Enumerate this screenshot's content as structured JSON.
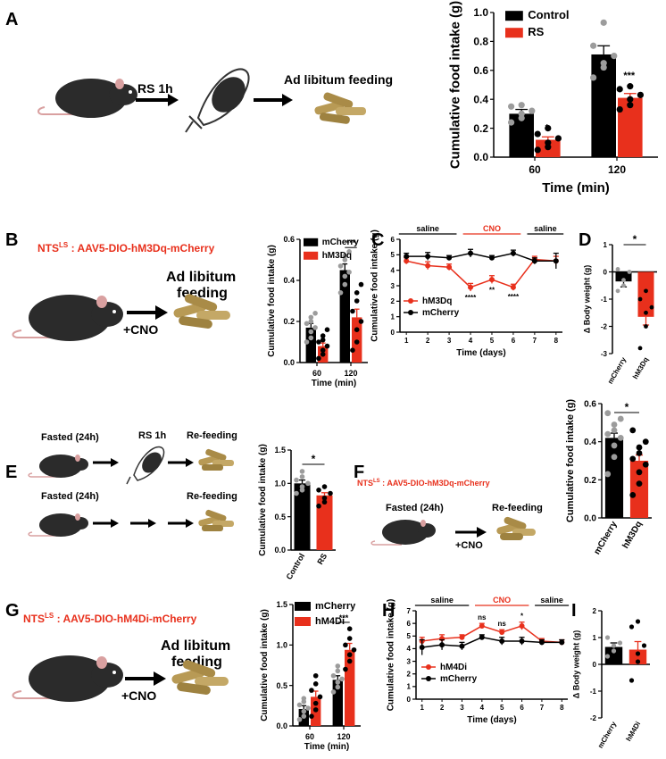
{
  "colors": {
    "control": "#000000",
    "treatment": "#e8301c",
    "dots_light": "#9c9c9c",
    "mouse": "#2b2b2b",
    "pellet": "#b89a55"
  },
  "panels": {
    "A": {
      "letter": "A",
      "rs_step": "RS 1h",
      "feed_label": "Ad libitum feeding"
    },
    "B": {
      "letter": "B",
      "construct_prefix": "NTS",
      "construct_sup": "LS",
      "construct_rest": " : AAV5-DIO-hM3Dq-mCherry",
      "feed_line1": "Ad libitum",
      "feed_line2": "feeding",
      "cno": "+CNO"
    },
    "C": {
      "letter": "C"
    },
    "D": {
      "letter": "D"
    },
    "E": {
      "letter": "E",
      "fasted1": "Fasted (24h)",
      "rs": "RS 1h",
      "refeed1": "Re-feeding",
      "fasted2": "Fasted (24h)",
      "refeed2": "Re-feeding"
    },
    "F": {
      "letter": "F",
      "construct_prefix": "NTS",
      "construct_sup": "LS",
      "construct_rest": " : AAV5-DIO-hM3Dq-mCherry",
      "fasted": "Fasted (24h)",
      "refeed": "Re-feeding",
      "cno": "+CNO"
    },
    "G": {
      "letter": "G",
      "construct_prefix": "NTS",
      "construct_sup": "LS",
      "construct_rest": " : AAV5-DIO-hM4Di-mCherry",
      "feed_line1": "Ad libitum",
      "feed_line2": "feeding",
      "cno": "+CNO"
    },
    "H": {
      "letter": "H"
    },
    "I": {
      "letter": "I"
    }
  },
  "chart_data": [
    {
      "id": "A",
      "type": "bar",
      "x": [
        "60",
        "120"
      ],
      "xlabel": "Time (min)",
      "ylabel": "Cumulative food intake (g)",
      "ylim": [
        0,
        1.0
      ],
      "yticks": [
        "0.0",
        "0.2",
        "0.4",
        "0.6",
        "0.8",
        "1.0"
      ],
      "legend": "top-left",
      "series": [
        {
          "name": "Control",
          "color": "#000000",
          "values": [
            0.3,
            0.71
          ],
          "sem": [
            0.03,
            0.06
          ],
          "points": [
            [
              0.24,
              0.27,
              0.3,
              0.32,
              0.35,
              0.36
            ],
            [
              0.55,
              0.62,
              0.65,
              0.7,
              0.77,
              0.93
            ]
          ]
        },
        {
          "name": "RS",
          "color": "#e8301c",
          "values": [
            0.12,
            0.41
          ],
          "sem": [
            0.02,
            0.03
          ],
          "points": [
            [
              0.05,
              0.07,
              0.1,
              0.13,
              0.16,
              0.2
            ],
            [
              0.33,
              0.36,
              0.4,
              0.43,
              0.47,
              0.49
            ]
          ]
        }
      ],
      "annotations": [
        "*",
        "***"
      ]
    },
    {
      "id": "B",
      "type": "bar",
      "x": [
        "60",
        "120"
      ],
      "xlabel": "Time (min)",
      "ylabel": "Cumulative food intake (g)",
      "ylim": [
        0,
        0.6
      ],
      "yticks": [
        "0.0",
        "0.2",
        "0.4",
        "0.6"
      ],
      "legend": "top-left",
      "series": [
        {
          "name": "mCherry",
          "color": "#000000",
          "values": [
            0.17,
            0.45
          ],
          "sem": [
            0.02,
            0.03
          ],
          "points": [
            [
              0.1,
              0.12,
              0.15,
              0.17,
              0.19,
              0.2,
              0.22,
              0.24
            ],
            [
              0.34,
              0.38,
              0.42,
              0.44,
              0.47,
              0.5,
              0.52,
              0.54
            ]
          ]
        },
        {
          "name": "hM3Dq",
          "color": "#e8301c",
          "values": [
            0.08,
            0.22
          ],
          "sem": [
            0.015,
            0.04
          ],
          "points": [
            [
              0.02,
              0.04,
              0.06,
              0.08,
              0.1,
              0.11,
              0.13,
              0.16
            ],
            [
              0.06,
              0.1,
              0.16,
              0.2,
              0.25,
              0.3,
              0.34,
              0.38
            ]
          ]
        }
      ],
      "annotations": [
        "***"
      ]
    },
    {
      "id": "C",
      "type": "line",
      "x": [
        "1",
        "2",
        "3",
        "4",
        "5",
        "6",
        "7",
        "8"
      ],
      "xlabel": "Time (days)",
      "ylabel": "Cumulative food intake (g)",
      "ylim": [
        0,
        6
      ],
      "yticks": [
        "0",
        "1",
        "2",
        "3",
        "4",
        "5",
        "6"
      ],
      "legend": "bottom-left",
      "segments": [
        "saline",
        "CNO",
        "saline"
      ],
      "series": [
        {
          "name": "hM3Dq",
          "color": "#e8301c",
          "values": [
            4.6,
            4.3,
            4.2,
            2.9,
            3.4,
            2.9,
            4.7,
            4.6
          ],
          "sem": [
            0.2,
            0.25,
            0.2,
            0.25,
            0.25,
            0.2,
            0.2,
            0.3
          ]
        },
        {
          "name": "mCherry",
          "color": "#000000",
          "values": [
            4.9,
            4.9,
            4.8,
            5.1,
            4.8,
            5.1,
            4.6,
            4.6
          ],
          "sem": [
            0.2,
            0.25,
            0.15,
            0.25,
            0.15,
            0.2,
            0.2,
            0.5
          ]
        }
      ],
      "annotations": [
        "****",
        "**",
        "****"
      ]
    },
    {
      "id": "D",
      "type": "bar",
      "x": [
        "mCherry",
        "hM3Dq"
      ],
      "ylabel": "Δ Body weight (g)",
      "ylim": [
        -3,
        1
      ],
      "yticks": [
        "-3",
        "-2",
        "-1",
        "0",
        "1"
      ],
      "values": [
        -0.35,
        -1.65
      ],
      "sem": [
        0.2,
        0.3
      ],
      "colors": [
        "#000000",
        "#e8301c"
      ],
      "points": [
        [
          -0.7,
          -0.5,
          -0.3,
          0.0,
          0.1
        ],
        [
          -2.8,
          -2.0,
          -1.5,
          -1.3,
          -1.0,
          -0.7
        ]
      ],
      "annotations": [
        "*"
      ]
    },
    {
      "id": "E",
      "type": "bar",
      "x": [
        "Control",
        "RS"
      ],
      "ylabel": "Cumulative food intake (g)",
      "ylim": [
        0,
        1.5
      ],
      "yticks": [
        "0.0",
        "0.5",
        "1.0",
        "1.5"
      ],
      "values": [
        1.0,
        0.82
      ],
      "sem": [
        0.05,
        0.04
      ],
      "colors": [
        "#000000",
        "#e8301c"
      ],
      "points": [
        [
          0.85,
          0.9,
          0.95,
          1.0,
          1.05,
          1.1,
          1.18
        ],
        [
          0.66,
          0.72,
          0.78,
          0.85,
          0.9,
          0.95
        ]
      ],
      "annotations": [
        "*"
      ]
    },
    {
      "id": "F",
      "type": "bar",
      "x": [
        "mCherry",
        "hM3Dq"
      ],
      "ylabel": "Cumulative food intake (g)",
      "ylim": [
        0,
        0.6
      ],
      "yticks": [
        "0.0",
        "0.2",
        "0.4",
        "0.6"
      ],
      "values": [
        0.42,
        0.3
      ],
      "sem": [
        0.025,
        0.03
      ],
      "colors": [
        "#000000",
        "#e8301c"
      ],
      "points": [
        [
          0.23,
          0.32,
          0.38,
          0.42,
          0.44,
          0.46,
          0.49,
          0.52,
          0.55
        ],
        [
          0.12,
          0.18,
          0.24,
          0.28,
          0.31,
          0.34,
          0.37,
          0.4,
          0.46
        ]
      ],
      "annotations": [
        "*"
      ]
    },
    {
      "id": "G",
      "type": "bar",
      "x": [
        "60",
        "120"
      ],
      "xlabel": "Time (min)",
      "ylabel": "Cumulative food intake (g)",
      "ylim": [
        0,
        1.5
      ],
      "yticks": [
        "0.0",
        "0.5",
        "1.0",
        "1.5"
      ],
      "legend": "top-left",
      "series": [
        {
          "name": "mCherry",
          "color": "#000000",
          "values": [
            0.21,
            0.57
          ],
          "sem": [
            0.04,
            0.05
          ],
          "points": [
            [
              0.08,
              0.12,
              0.18,
              0.22,
              0.26,
              0.3,
              0.34
            ],
            [
              0.42,
              0.48,
              0.54,
              0.58,
              0.62,
              0.68,
              0.74
            ]
          ]
        },
        {
          "name": "hM4Di",
          "color": "#e8301c",
          "values": [
            0.36,
            0.94
          ],
          "sem": [
            0.07,
            0.08
          ],
          "points": [
            [
              0.12,
              0.2,
              0.28,
              0.36,
              0.44,
              0.52,
              0.62
            ],
            [
              0.7,
              0.8,
              0.88,
              0.94,
              1.0,
              1.08,
              1.2
            ]
          ]
        }
      ],
      "annotations": [
        "***"
      ]
    },
    {
      "id": "H",
      "type": "line",
      "x": [
        "1",
        "2",
        "3",
        "4",
        "5",
        "6",
        "7",
        "8"
      ],
      "xlabel": "Time (days)",
      "ylabel": "Cumulative food intake (g)",
      "ylim": [
        0,
        7
      ],
      "yticks": [
        "0",
        "1",
        "2",
        "3",
        "4",
        "5",
        "6",
        "7"
      ],
      "legend": "bottom-left",
      "segments": [
        "saline",
        "CNO",
        "saline"
      ],
      "series": [
        {
          "name": "hM4Di",
          "color": "#e8301c",
          "values": [
            4.6,
            4.8,
            4.9,
            5.8,
            5.3,
            5.8,
            4.6,
            4.5
          ],
          "sem": [
            0.3,
            0.3,
            0.2,
            0.2,
            0.2,
            0.3,
            0.2,
            0.2
          ]
        },
        {
          "name": "mCherry",
          "color": "#000000",
          "values": [
            4.1,
            4.3,
            4.2,
            4.9,
            4.6,
            4.6,
            4.5,
            4.5
          ],
          "sem": [
            0.6,
            0.4,
            0.3,
            0.2,
            0.3,
            0.3,
            0.2,
            0.2
          ]
        }
      ],
      "annotations": [
        "ns",
        "ns",
        "*"
      ]
    },
    {
      "id": "I",
      "type": "bar",
      "x": [
        "mCherry",
        "hM4Di"
      ],
      "ylabel": "Δ Body weight (g)",
      "ylim": [
        -2,
        2
      ],
      "yticks": [
        "-2",
        "-1",
        "0",
        "1",
        "2"
      ],
      "values": [
        0.65,
        0.55
      ],
      "sem": [
        0.15,
        0.3
      ],
      "colors": [
        "#000000",
        "#e8301c"
      ],
      "points": [
        [
          0.3,
          0.5,
          0.7,
          0.8,
          1.0
        ],
        [
          -0.6,
          0.1,
          0.4,
          0.7,
          1.4,
          1.6
        ]
      ],
      "annotations": []
    }
  ]
}
